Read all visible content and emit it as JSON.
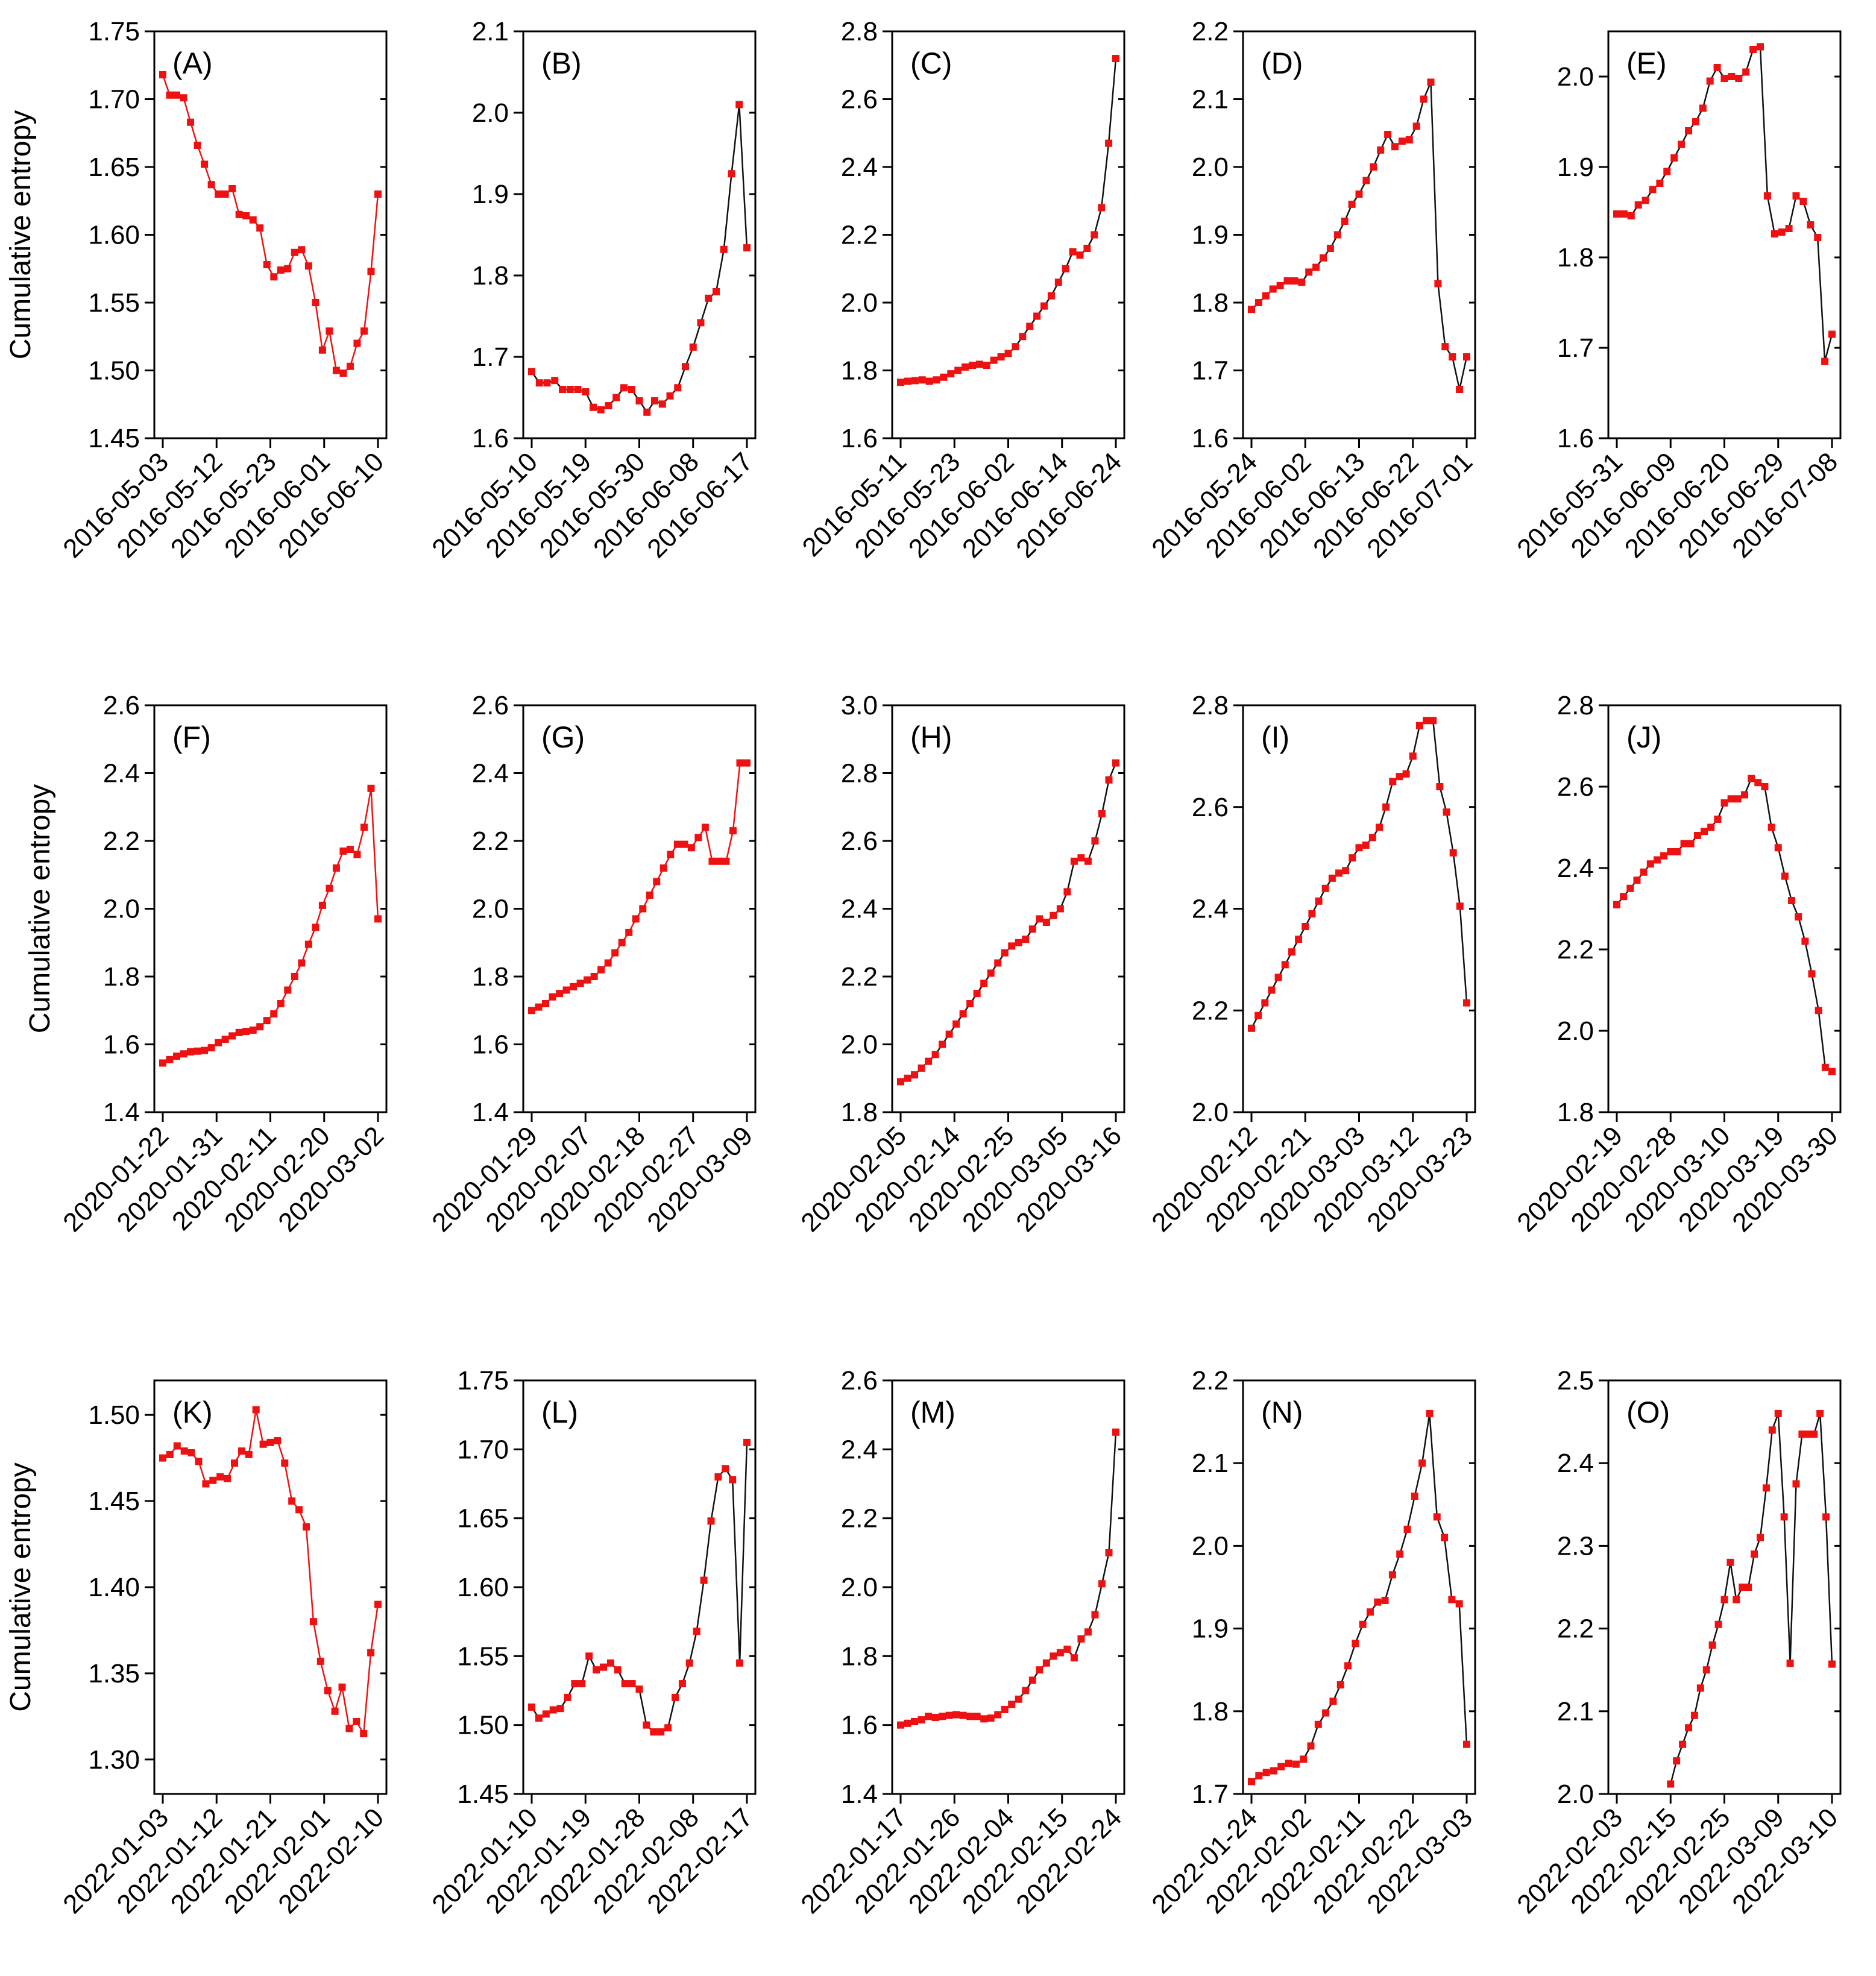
{
  "styles": {
    "marker_color": "#ee1111",
    "axis_color": "#000000",
    "red_line": "#ee1111",
    "black_line": "#111111"
  },
  "ylabel": "Cumulative entropy",
  "chart_data": [
    {
      "type": "line",
      "label": "(A)",
      "line_color": "red",
      "ylim": [
        1.45,
        1.75
      ],
      "yticks": [
        "1.45",
        "1.50",
        "1.55",
        "1.60",
        "1.65",
        "1.70",
        "1.75"
      ],
      "xticks": [
        "2016-05-03",
        "2016-05-12",
        "2016-05-23",
        "2016-06-01",
        "2016-06-10"
      ],
      "values": [
        1.718,
        1.703,
        1.703,
        1.701,
        1.683,
        1.666,
        1.652,
        1.637,
        1.63,
        1.63,
        1.634,
        1.615,
        1.614,
        1.611,
        1.605,
        1.578,
        1.569,
        1.574,
        1.575,
        1.587,
        1.589,
        1.577,
        1.55,
        1.515,
        1.529,
        1.5,
        1.498,
        1.503,
        1.52,
        1.529,
        1.573,
        1.63
      ]
    },
    {
      "type": "line",
      "label": "(B)",
      "line_color": "black",
      "ylim": [
        1.6,
        2.1
      ],
      "yticks": [
        "1.6",
        "1.7",
        "1.8",
        "1.9",
        "2.0",
        "2.1"
      ],
      "xticks": [
        "2016-05-10",
        "2016-05-19",
        "2016-05-30",
        "2016-06-08",
        "2016-06-17"
      ],
      "values": [
        1.682,
        1.668,
        1.668,
        1.671,
        1.66,
        1.66,
        1.66,
        1.657,
        1.638,
        1.635,
        1.64,
        1.65,
        1.662,
        1.66,
        1.646,
        1.632,
        1.646,
        1.642,
        1.652,
        1.662,
        1.688,
        1.712,
        1.742,
        1.772,
        1.78,
        1.832,
        1.925,
        2.01,
        1.834
      ]
    },
    {
      "type": "line",
      "label": "(C)",
      "line_color": "black",
      "ylim": [
        1.6,
        2.8
      ],
      "yticks": [
        "1.6",
        "1.8",
        "2.0",
        "2.2",
        "2.4",
        "2.6",
        "2.8"
      ],
      "xticks": [
        "2016-05-11",
        "2016-05-23",
        "2016-06-02",
        "2016-06-14",
        "2016-06-24"
      ],
      "values": [
        1.765,
        1.768,
        1.77,
        1.772,
        1.768,
        1.772,
        1.78,
        1.79,
        1.8,
        1.81,
        1.815,
        1.818,
        1.815,
        1.83,
        1.84,
        1.85,
        1.87,
        1.9,
        1.93,
        1.96,
        1.99,
        2.02,
        2.06,
        2.1,
        2.15,
        2.14,
        2.16,
        2.2,
        2.28,
        2.47,
        2.72
      ]
    },
    {
      "type": "line",
      "label": "(D)",
      "line_color": "black",
      "ylim": [
        1.6,
        2.2
      ],
      "yticks": [
        "1.6",
        "1.7",
        "1.8",
        "1.9",
        "2.0",
        "2.1",
        "2.2"
      ],
      "xticks": [
        "2016-05-24",
        "2016-06-02",
        "2016-06-13",
        "2016-06-22",
        "2016-07-01"
      ],
      "values": [
        1.79,
        1.8,
        1.81,
        1.82,
        1.825,
        1.832,
        1.832,
        1.83,
        1.845,
        1.852,
        1.866,
        1.88,
        1.9,
        1.92,
        1.945,
        1.96,
        1.98,
        2.0,
        2.025,
        2.048,
        2.03,
        2.038,
        2.04,
        2.06,
        2.1,
        2.125,
        1.828,
        1.735,
        1.72,
        1.672,
        1.72
      ]
    },
    {
      "type": "line",
      "label": "(E)",
      "line_color": "black",
      "ylim": [
        1.6,
        2.05
      ],
      "yticks": [
        "1.6",
        "1.7",
        "1.8",
        "1.9",
        "2.0"
      ],
      "xticks": [
        "2016-05-31",
        "2016-06-09",
        "2016-06-20",
        "2016-06-29",
        "2016-07-08"
      ],
      "values": [
        1.848,
        1.848,
        1.846,
        1.858,
        1.863,
        1.875,
        1.882,
        1.895,
        1.91,
        1.925,
        1.94,
        1.95,
        1.965,
        1.995,
        2.01,
        1.998,
        2.0,
        1.998,
        2.005,
        2.03,
        2.033,
        1.868,
        1.826,
        1.828,
        1.832,
        1.868,
        1.862,
        1.836,
        1.822,
        1.685,
        1.715
      ]
    },
    {
      "type": "line",
      "label": "(F)",
      "line_color": "red",
      "ylim": [
        1.4,
        2.6
      ],
      "yticks": [
        "1.4",
        "1.6",
        "1.8",
        "2.0",
        "2.2",
        "2.4",
        "2.6"
      ],
      "xticks": [
        "2020-01-22",
        "2020-01-31",
        "2020-02-11",
        "2020-02-20",
        "2020-03-02"
      ],
      "values": [
        1.545,
        1.555,
        1.565,
        1.572,
        1.578,
        1.58,
        1.582,
        1.59,
        1.605,
        1.615,
        1.625,
        1.635,
        1.638,
        1.642,
        1.652,
        1.67,
        1.69,
        1.72,
        1.76,
        1.8,
        1.84,
        1.895,
        1.945,
        2.01,
        2.06,
        2.12,
        2.17,
        2.175,
        2.16,
        2.24,
        2.355,
        1.97
      ]
    },
    {
      "type": "line",
      "label": "(G)",
      "line_color": "red",
      "ylim": [
        1.4,
        2.6
      ],
      "yticks": [
        "1.4",
        "1.6",
        "1.8",
        "2.0",
        "2.2",
        "2.4",
        "2.6"
      ],
      "xticks": [
        "2020-01-29",
        "2020-02-07",
        "2020-02-18",
        "2020-02-27",
        "2020-03-09"
      ],
      "values": [
        1.7,
        1.71,
        1.72,
        1.74,
        1.75,
        1.76,
        1.77,
        1.78,
        1.79,
        1.8,
        1.82,
        1.84,
        1.87,
        1.9,
        1.93,
        1.97,
        2.0,
        2.04,
        2.08,
        2.12,
        2.16,
        2.19,
        2.19,
        2.18,
        2.21,
        2.24,
        2.14,
        2.14,
        2.14,
        2.23,
        2.43,
        2.43
      ]
    },
    {
      "type": "line",
      "label": "(H)",
      "line_color": "black",
      "ylim": [
        1.8,
        3.0
      ],
      "yticks": [
        "1.8",
        "2.0",
        "2.2",
        "2.4",
        "2.6",
        "2.8",
        "3.0"
      ],
      "xticks": [
        "2020-02-05",
        "2020-02-14",
        "2020-02-25",
        "2020-03-05",
        "2020-03-16"
      ],
      "values": [
        1.89,
        1.9,
        1.91,
        1.93,
        1.95,
        1.97,
        2.0,
        2.03,
        2.06,
        2.09,
        2.12,
        2.15,
        2.18,
        2.21,
        2.24,
        2.27,
        2.29,
        2.3,
        2.31,
        2.34,
        2.37,
        2.36,
        2.38,
        2.4,
        2.45,
        2.54,
        2.55,
        2.54,
        2.6,
        2.68,
        2.78,
        2.83
      ]
    },
    {
      "type": "line",
      "label": "(I)",
      "line_color": "black",
      "ylim": [
        2.0,
        2.8
      ],
      "yticks": [
        "2.0",
        "2.2",
        "2.4",
        "2.6",
        "2.8"
      ],
      "xticks": [
        "2020-02-12",
        "2020-02-21",
        "2020-03-03",
        "2020-03-12",
        "2020-03-23"
      ],
      "values": [
        2.165,
        2.19,
        2.215,
        2.24,
        2.265,
        2.29,
        2.315,
        2.34,
        2.365,
        2.39,
        2.415,
        2.44,
        2.46,
        2.47,
        2.475,
        2.5,
        2.52,
        2.525,
        2.54,
        2.56,
        2.6,
        2.65,
        2.66,
        2.665,
        2.7,
        2.76,
        2.77,
        2.77,
        2.64,
        2.59,
        2.51,
        2.405,
        2.215
      ]
    },
    {
      "type": "line",
      "label": "(J)",
      "line_color": "black",
      "ylim": [
        1.8,
        2.8
      ],
      "yticks": [
        "1.8",
        "2.0",
        "2.2",
        "2.4",
        "2.6",
        "2.8"
      ],
      "xticks": [
        "2020-02-19",
        "2020-02-28",
        "2020-03-10",
        "2020-03-19",
        "2020-03-30"
      ],
      "values": [
        2.31,
        2.33,
        2.35,
        2.37,
        2.39,
        2.41,
        2.42,
        2.43,
        2.44,
        2.44,
        2.46,
        2.46,
        2.48,
        2.49,
        2.5,
        2.52,
        2.56,
        2.57,
        2.57,
        2.58,
        2.62,
        2.61,
        2.6,
        2.5,
        2.45,
        2.38,
        2.32,
        2.28,
        2.22,
        2.14,
        2.05,
        1.91,
        1.9
      ]
    },
    {
      "type": "line",
      "label": "(K)",
      "line_color": "red",
      "ylim": [
        1.28,
        1.52
      ],
      "yticks": [
        "1.30",
        "1.35",
        "1.40",
        "1.45",
        "1.50"
      ],
      "xticks": [
        "2022-01-03",
        "2022-01-12",
        "2022-01-21",
        "2022-02-01",
        "2022-02-10"
      ],
      "values": [
        1.475,
        1.477,
        1.482,
        1.479,
        1.478,
        1.473,
        1.46,
        1.462,
        1.464,
        1.463,
        1.472,
        1.479,
        1.477,
        1.503,
        1.483,
        1.484,
        1.485,
        1.472,
        1.45,
        1.445,
        1.435,
        1.38,
        1.357,
        1.34,
        1.328,
        1.342,
        1.318,
        1.322,
        1.315,
        1.362,
        1.39
      ]
    },
    {
      "type": "line",
      "label": "(L)",
      "line_color": "black",
      "ylim": [
        1.45,
        1.75
      ],
      "yticks": [
        "1.45",
        "1.50",
        "1.55",
        "1.60",
        "1.65",
        "1.70",
        "1.75"
      ],
      "xticks": [
        "2022-01-10",
        "2022-01-19",
        "2022-01-28",
        "2022-02-08",
        "2022-02-17"
      ],
      "values": [
        1.513,
        1.505,
        1.508,
        1.511,
        1.512,
        1.52,
        1.53,
        1.53,
        1.55,
        1.54,
        1.542,
        1.545,
        1.54,
        1.53,
        1.53,
        1.526,
        1.5,
        1.495,
        1.495,
        1.498,
        1.52,
        1.53,
        1.545,
        1.568,
        1.605,
        1.648,
        1.68,
        1.686,
        1.678,
        1.545,
        1.705
      ]
    },
    {
      "type": "line",
      "label": "(M)",
      "line_color": "black",
      "ylim": [
        1.4,
        2.6
      ],
      "yticks": [
        "1.4",
        "1.6",
        "1.8",
        "2.0",
        "2.2",
        "2.4",
        "2.6"
      ],
      "xticks": [
        "2022-01-17",
        "2022-01-26",
        "2022-02-04",
        "2022-02-15",
        "2022-02-24"
      ],
      "values": [
        1.6,
        1.605,
        1.61,
        1.615,
        1.625,
        1.622,
        1.625,
        1.628,
        1.63,
        1.628,
        1.625,
        1.625,
        1.618,
        1.62,
        1.63,
        1.645,
        1.66,
        1.675,
        1.7,
        1.73,
        1.76,
        1.78,
        1.8,
        1.81,
        1.82,
        1.795,
        1.85,
        1.87,
        1.92,
        2.01,
        2.1,
        2.45
      ]
    },
    {
      "type": "line",
      "label": "(N)",
      "line_color": "black",
      "ylim": [
        1.7,
        2.2
      ],
      "yticks": [
        "1.7",
        "1.8",
        "1.9",
        "2.0",
        "2.1",
        "2.2"
      ],
      "xticks": [
        "2022-01-24",
        "2022-02-02",
        "2022-02-11",
        "2022-02-22",
        "2022-03-03"
      ],
      "values": [
        1.715,
        1.722,
        1.726,
        1.728,
        1.733,
        1.737,
        1.736,
        1.742,
        1.758,
        1.784,
        1.798,
        1.812,
        1.832,
        1.855,
        1.882,
        1.905,
        1.92,
        1.932,
        1.934,
        1.965,
        1.99,
        2.02,
        2.06,
        2.1,
        2.16,
        2.035,
        2.01,
        1.935,
        1.93,
        1.76
      ]
    },
    {
      "type": "line",
      "label": "(O)",
      "line_color": "black",
      "ylim": [
        2.0,
        2.5
      ],
      "yticks": [
        "2.0",
        "2.1",
        "2.2",
        "2.3",
        "2.4",
        "2.5"
      ],
      "xticks": [
        "2022-02-03",
        "2022-02-15",
        "2022-02-25",
        "2022-03-09",
        "2022-03-10"
      ],
      "values": [
        null,
        null,
        null,
        null,
        null,
        null,
        null,
        null,
        null,
        2.012,
        2.04,
        2.06,
        2.08,
        2.095,
        2.128,
        2.15,
        2.18,
        2.205,
        2.235,
        2.28,
        2.235,
        2.25,
        2.25,
        2.29,
        2.31,
        2.37,
        2.44,
        2.46,
        2.335,
        2.158,
        2.375,
        2.435,
        2.435,
        2.435,
        2.46,
        2.335,
        2.157
      ]
    }
  ]
}
